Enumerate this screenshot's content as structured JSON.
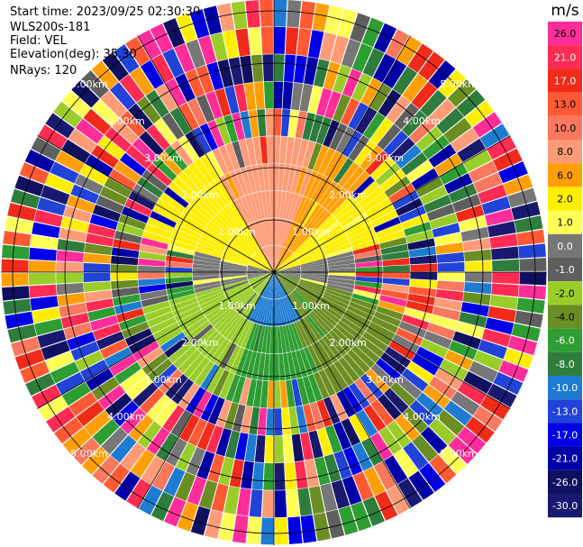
{
  "header": {
    "start_time": "Start time: 2023/09/25 02:30:30",
    "instrument": "WLS200s-181",
    "field": "Field: VEL",
    "elevation": "Elevation(deg): 35.30",
    "nrays": "NRays: 120"
  },
  "chart_data": {
    "type": "ppi",
    "field": "VEL",
    "units": "m/s",
    "n_rays": 120,
    "elevation_deg": 35.3,
    "range_ring_labels": [
      "1.00km",
      "2.00km",
      "3.00km",
      "4.00km",
      "5.00km"
    ],
    "colorbar": {
      "units_label": "m/s",
      "ticks": [
        "26.0",
        "21.0",
        "17.0",
        "13.0",
        "10.0",
        "8.0",
        "6.0",
        "2.0",
        "1.0",
        "0.0",
        "-1.0",
        "-2.0",
        "-4.0",
        "-6.0",
        "-8.0",
        "-10.0",
        "-13.0",
        "-17.0",
        "-21.0",
        "-26.0",
        "-30.0"
      ],
      "colors": [
        "#ff2d9a",
        "#ff2b52",
        "#f02b1a",
        "#ff5a34",
        "#f9785e",
        "#ff9b77",
        "#ff9f08",
        "#ffee00",
        "#ffff55",
        "#777777",
        "#5f5f5f",
        "#9acd2a",
        "#6b8e23",
        "#2e9e33",
        "#2f7d3c",
        "#1e7bd2",
        "#2243d8",
        "#0000e6",
        "#0000a8",
        "#101060",
        "#191970"
      ]
    },
    "near_field": [
      {
        "sector": "north",
        "value": 8.0
      },
      {
        "sector": "northeast",
        "value": 6.0
      },
      {
        "sector": "east-north",
        "value": 2.0
      },
      {
        "sector": "horizon",
        "value": 0.0
      },
      {
        "sector": "southwest",
        "value": -2.0
      },
      {
        "sector": "south",
        "value": -6.0
      },
      {
        "sector": "center-south",
        "value": -10.0
      }
    ],
    "far_field": "noise",
    "colors": {
      "label_white": "#ffffff",
      "grid": "#000000"
    }
  }
}
